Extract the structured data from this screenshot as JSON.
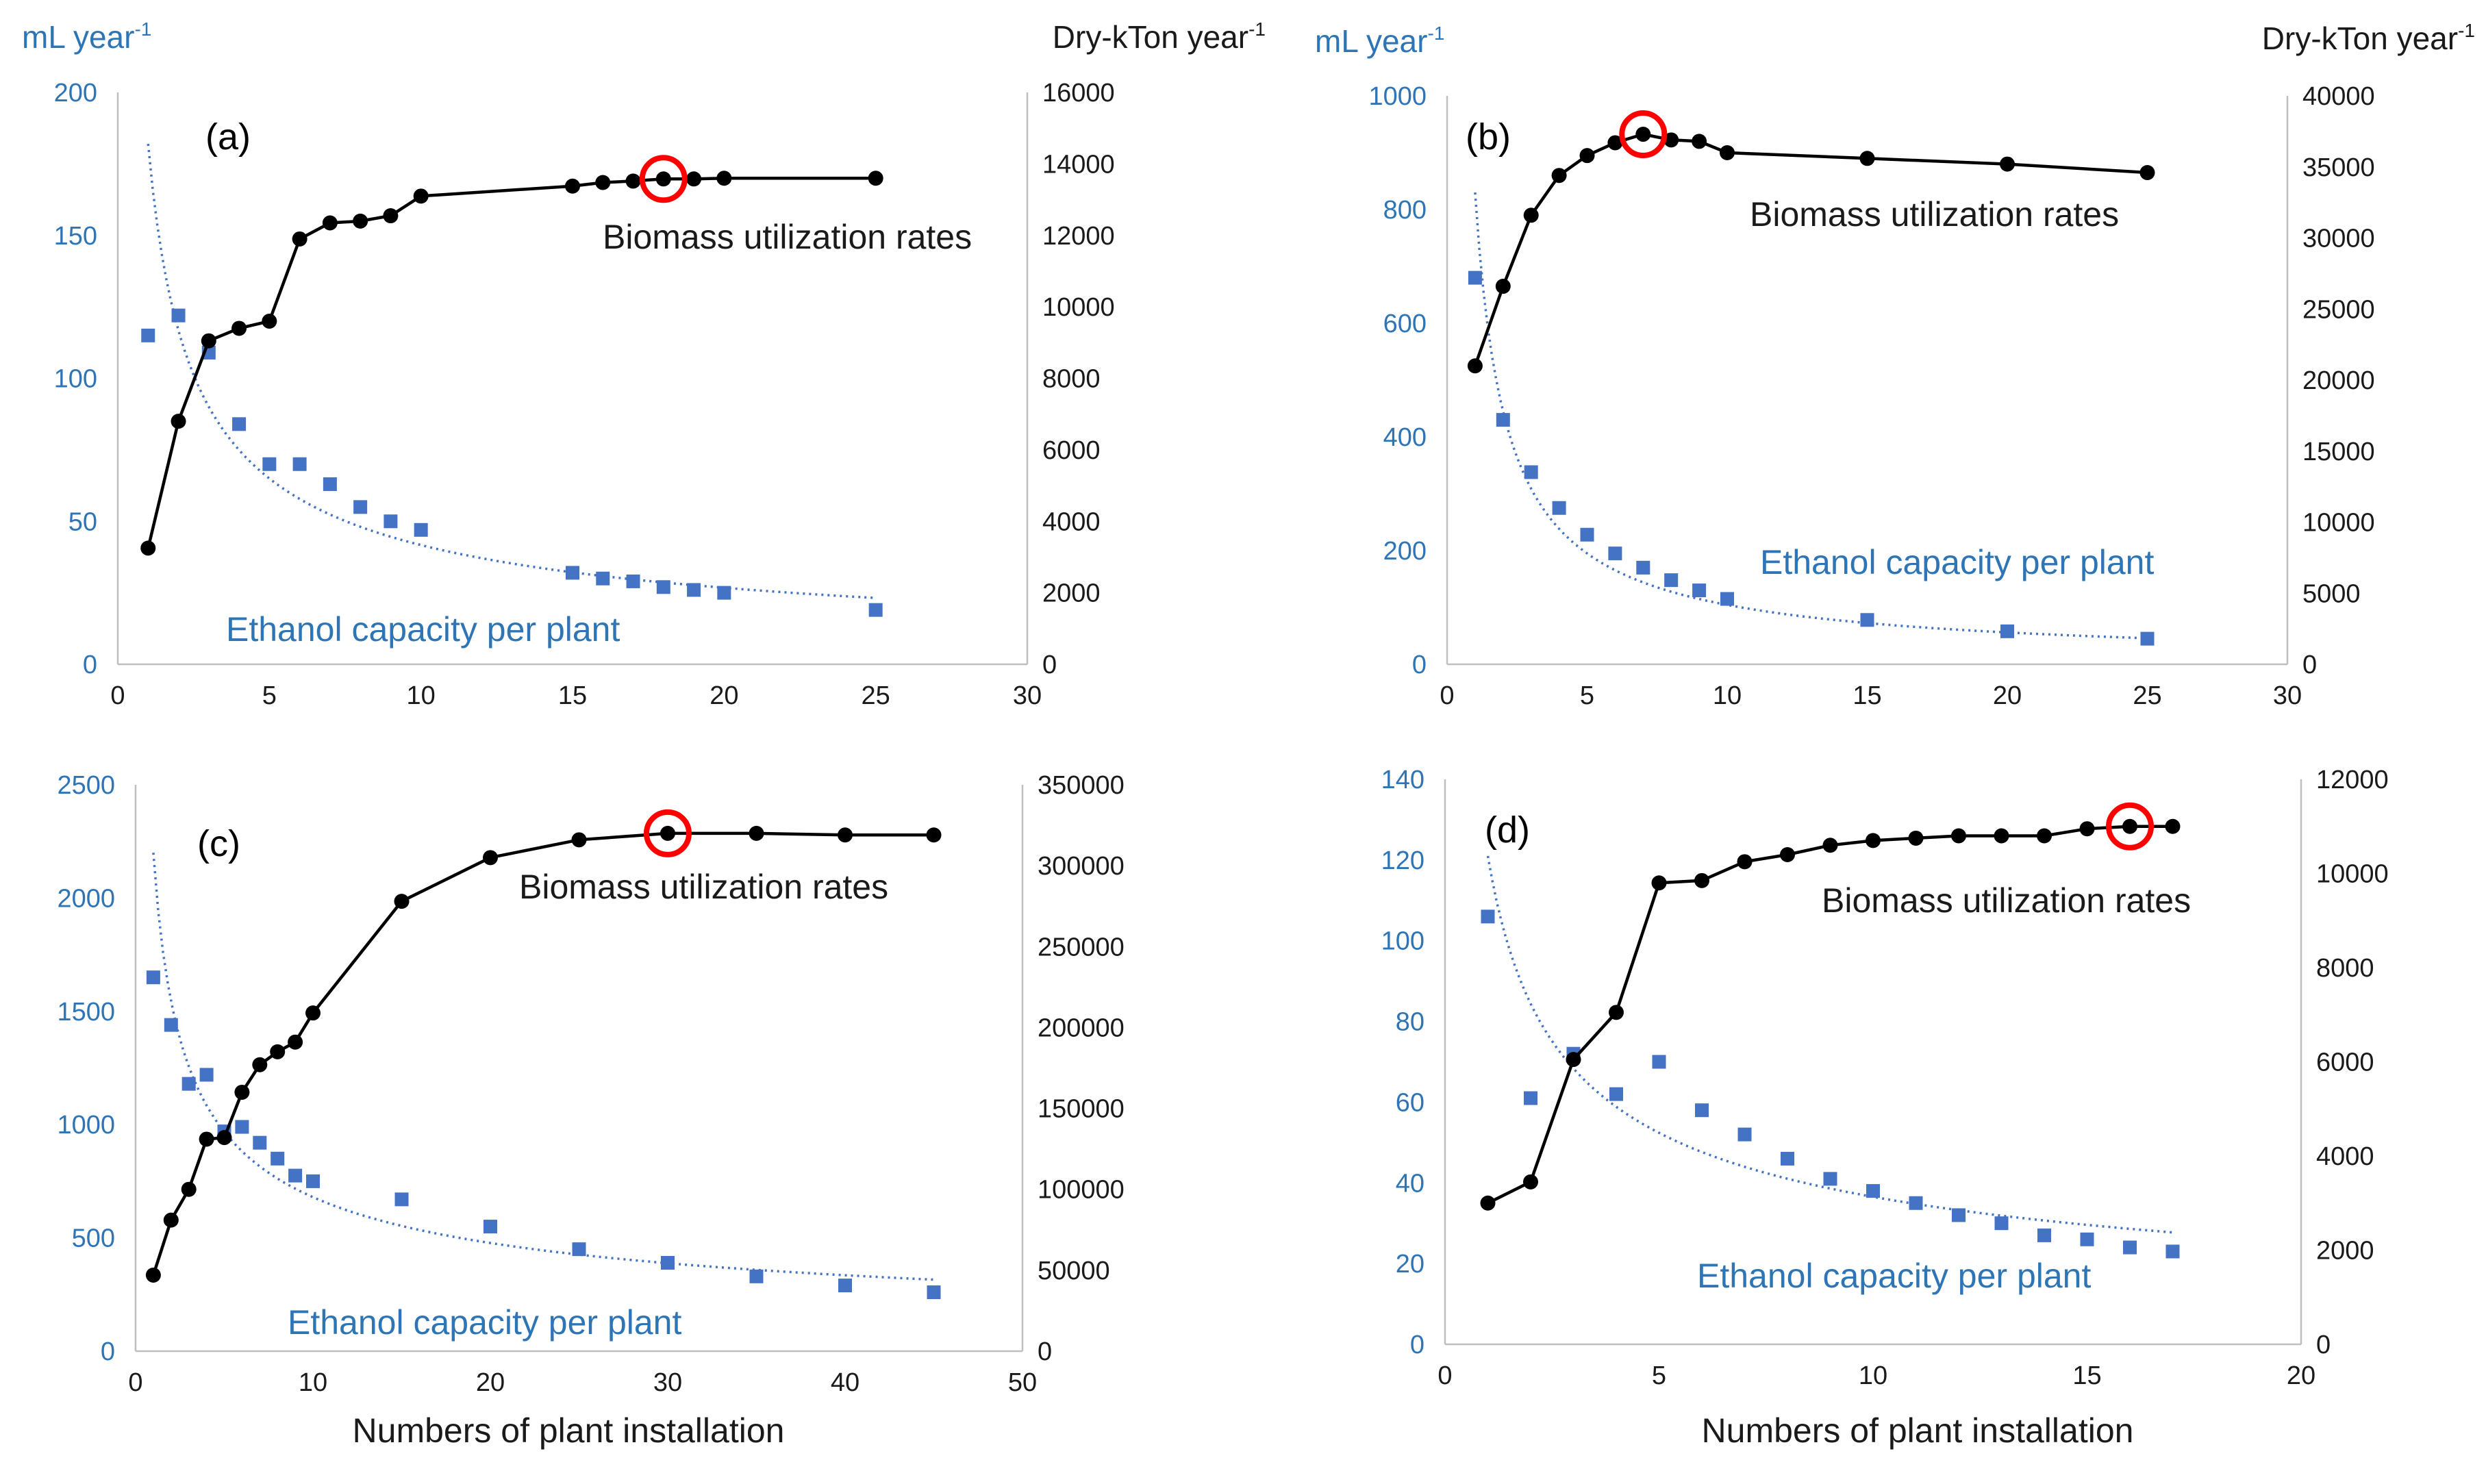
{
  "chart_data": [
    {
      "type": "scatter",
      "panel_label": "(a)",
      "y_left_unit": {
        "main": "mL year",
        "sup": "-1"
      },
      "y_right_unit": {
        "main": "Dry-kTon year",
        "sup": "-1"
      },
      "xlabel": "",
      "xlim": [
        0,
        30
      ],
      "xticks": [
        0,
        5,
        10,
        15,
        20,
        25,
        30
      ],
      "ylim_left": [
        0,
        200
      ],
      "yticks_left": [
        0,
        50,
        100,
        150,
        200
      ],
      "ylim_right": [
        0,
        16000
      ],
      "yticks_right": [
        0,
        2000,
        4000,
        6000,
        8000,
        10000,
        12000,
        14000,
        16000
      ],
      "series": [
        {
          "name": "Biomass utilization rates",
          "axis": "right",
          "style": "line-markers",
          "x": [
            1,
            2,
            3,
            4,
            5,
            6,
            7,
            8,
            9,
            10,
            15,
            16,
            17,
            18,
            19,
            20,
            25
          ],
          "values": [
            3250,
            6800,
            9050,
            9400,
            9600,
            11900,
            12350,
            12400,
            12550,
            13100,
            13380,
            13480,
            13520,
            13580,
            13580,
            13600,
            13600
          ]
        },
        {
          "name": "Ethanol capacity per plant",
          "axis": "left",
          "style": "square-markers",
          "x": [
            1,
            2,
            3,
            4,
            5,
            6,
            7,
            8,
            9,
            10,
            15,
            16,
            17,
            18,
            19,
            20,
            25
          ],
          "values": [
            115,
            122,
            109,
            84,
            70,
            70,
            63,
            55,
            50,
            47,
            32,
            30,
            29,
            27,
            26,
            25,
            19
          ]
        }
      ],
      "trendline": {
        "series": "Ethanol capacity per plant",
        "type": "power",
        "a": 182,
        "b": -0.64,
        "x_range": [
          1,
          25
        ]
      },
      "highlight": {
        "series": "Biomass utilization rates",
        "x": 18,
        "y": 13580
      },
      "annotations": {
        "biomass": "Biomass utilization rates",
        "ethanol": "Ethanol capacity per plant"
      }
    },
    {
      "type": "scatter",
      "panel_label": "(b)",
      "y_left_unit": {
        "main": "mL year",
        "sup": "-1"
      },
      "y_right_unit": {
        "main": "Dry-kTon year",
        "sup": "-1"
      },
      "xlabel": "",
      "xlim": [
        0,
        30
      ],
      "xticks": [
        0,
        5,
        10,
        15,
        20,
        25,
        30
      ],
      "ylim_left": [
        0,
        1000
      ],
      "yticks_left": [
        0,
        200,
        400,
        600,
        800,
        1000
      ],
      "ylim_right": [
        0,
        40000
      ],
      "yticks_right": [
        0,
        5000,
        10000,
        15000,
        20000,
        25000,
        30000,
        35000,
        40000
      ],
      "series": [
        {
          "name": "Biomass utilization rates",
          "axis": "right",
          "style": "line-markers",
          "x": [
            1,
            2,
            3,
            4,
            5,
            6,
            7,
            8,
            9,
            10,
            15,
            20,
            25
          ],
          "values": [
            21000,
            26600,
            31600,
            34400,
            35800,
            36700,
            37300,
            36900,
            36800,
            36000,
            35600,
            35200,
            34600
          ]
        },
        {
          "name": "Ethanol capacity per plant",
          "axis": "left",
          "style": "square-markers",
          "x": [
            1,
            2,
            3,
            4,
            5,
            6,
            7,
            8,
            9,
            10,
            15,
            20,
            25
          ],
          "values": [
            680,
            430,
            338,
            275,
            228,
            195,
            170,
            148,
            130,
            115,
            78,
            58,
            45
          ]
        }
      ],
      "trendline": {
        "series": "Ethanol capacity per plant",
        "type": "power",
        "a": 830,
        "b": -0.9,
        "x_range": [
          1,
          25
        ]
      },
      "highlight": {
        "series": "Biomass utilization rates",
        "x": 7,
        "y": 37300
      },
      "annotations": {
        "biomass": "Biomass utilization rates",
        "ethanol": "Ethanol capacity per plant"
      }
    },
    {
      "type": "scatter",
      "panel_label": "(c)",
      "y_left_unit": {
        "main": "",
        "sup": ""
      },
      "y_right_unit": {
        "main": "",
        "sup": ""
      },
      "xlabel": "Numbers of plant installation",
      "xlim": [
        0,
        50
      ],
      "xticks": [
        0,
        10,
        20,
        30,
        40,
        50
      ],
      "ylim_left": [
        0,
        2500
      ],
      "yticks_left": [
        0,
        500,
        1000,
        1500,
        2000,
        2500
      ],
      "ylim_right": [
        0,
        350000
      ],
      "yticks_right": [
        0,
        50000,
        100000,
        150000,
        200000,
        250000,
        300000,
        350000
      ],
      "series": [
        {
          "name": "Biomass utilization rates",
          "axis": "right",
          "style": "line-markers",
          "x": [
            1,
            2,
            3,
            4,
            5,
            6,
            7,
            8,
            9,
            10,
            15,
            20,
            25,
            30,
            35,
            40,
            45
          ],
          "values": [
            47000,
            81000,
            100000,
            131000,
            132000,
            160000,
            177000,
            185000,
            191000,
            209000,
            278000,
            305000,
            316000,
            320000,
            320000,
            319000,
            319000
          ]
        },
        {
          "name": "Ethanol capacity per plant",
          "axis": "left",
          "style": "square-markers",
          "x": [
            1,
            2,
            3,
            4,
            5,
            6,
            7,
            8,
            9,
            10,
            15,
            20,
            25,
            30,
            35,
            40,
            45
          ],
          "values": [
            1650,
            1440,
            1180,
            1220,
            970,
            990,
            920,
            850,
            775,
            750,
            670,
            550,
            450,
            390,
            330,
            290,
            260
          ]
        }
      ],
      "trendline": {
        "series": "Ethanol capacity per plant",
        "type": "power",
        "a": 2200,
        "b": -0.51,
        "x_range": [
          1,
          45
        ]
      },
      "highlight": {
        "series": "Biomass utilization rates",
        "x": 30,
        "y": 320000
      },
      "annotations": {
        "biomass": "Biomass utilization rates",
        "ethanol": "Ethanol capacity per plant"
      }
    },
    {
      "type": "scatter",
      "panel_label": "(d)",
      "y_left_unit": {
        "main": "",
        "sup": ""
      },
      "y_right_unit": {
        "main": "",
        "sup": ""
      },
      "xlabel": "Numbers of plant installation",
      "xlim": [
        0,
        20
      ],
      "xticks": [
        0,
        5,
        10,
        15,
        20
      ],
      "ylim_left": [
        0,
        140
      ],
      "yticks_left": [
        0,
        20,
        40,
        60,
        80,
        100,
        120,
        140
      ],
      "ylim_right": [
        0,
        12000
      ],
      "yticks_right": [
        0,
        2000,
        4000,
        6000,
        8000,
        10000,
        12000
      ],
      "series": [
        {
          "name": "Biomass utilization rates",
          "axis": "right",
          "style": "line-markers",
          "x": [
            1,
            2,
            3,
            4,
            5,
            6,
            7,
            8,
            9,
            10,
            11,
            12,
            13,
            14,
            15,
            16,
            17
          ],
          "values": [
            3000,
            3450,
            6050,
            7050,
            9800,
            9850,
            10250,
            10400,
            10600,
            10700,
            10750,
            10800,
            10800,
            10800,
            10950,
            11000,
            11000
          ]
        },
        {
          "name": "Ethanol capacity per plant",
          "axis": "left",
          "style": "square-markers",
          "x": [
            1,
            2,
            3,
            4,
            5,
            6,
            7,
            8,
            9,
            10,
            11,
            12,
            13,
            14,
            15,
            16,
            17
          ],
          "values": [
            106,
            61,
            72,
            62,
            70,
            58,
            52,
            46,
            41,
            38,
            35,
            32,
            30,
            27,
            26,
            24,
            23
          ]
        }
      ],
      "trendline": {
        "series": "Ethanol capacity per plant",
        "type": "power",
        "a": 121,
        "b": -0.52,
        "x_range": [
          1,
          17
        ]
      },
      "highlight": {
        "series": "Biomass utilization rates",
        "x": 16,
        "y": 11000
      },
      "annotations": {
        "biomass": "Biomass utilization rates",
        "ethanol": "Ethanol capacity per plant"
      }
    }
  ]
}
